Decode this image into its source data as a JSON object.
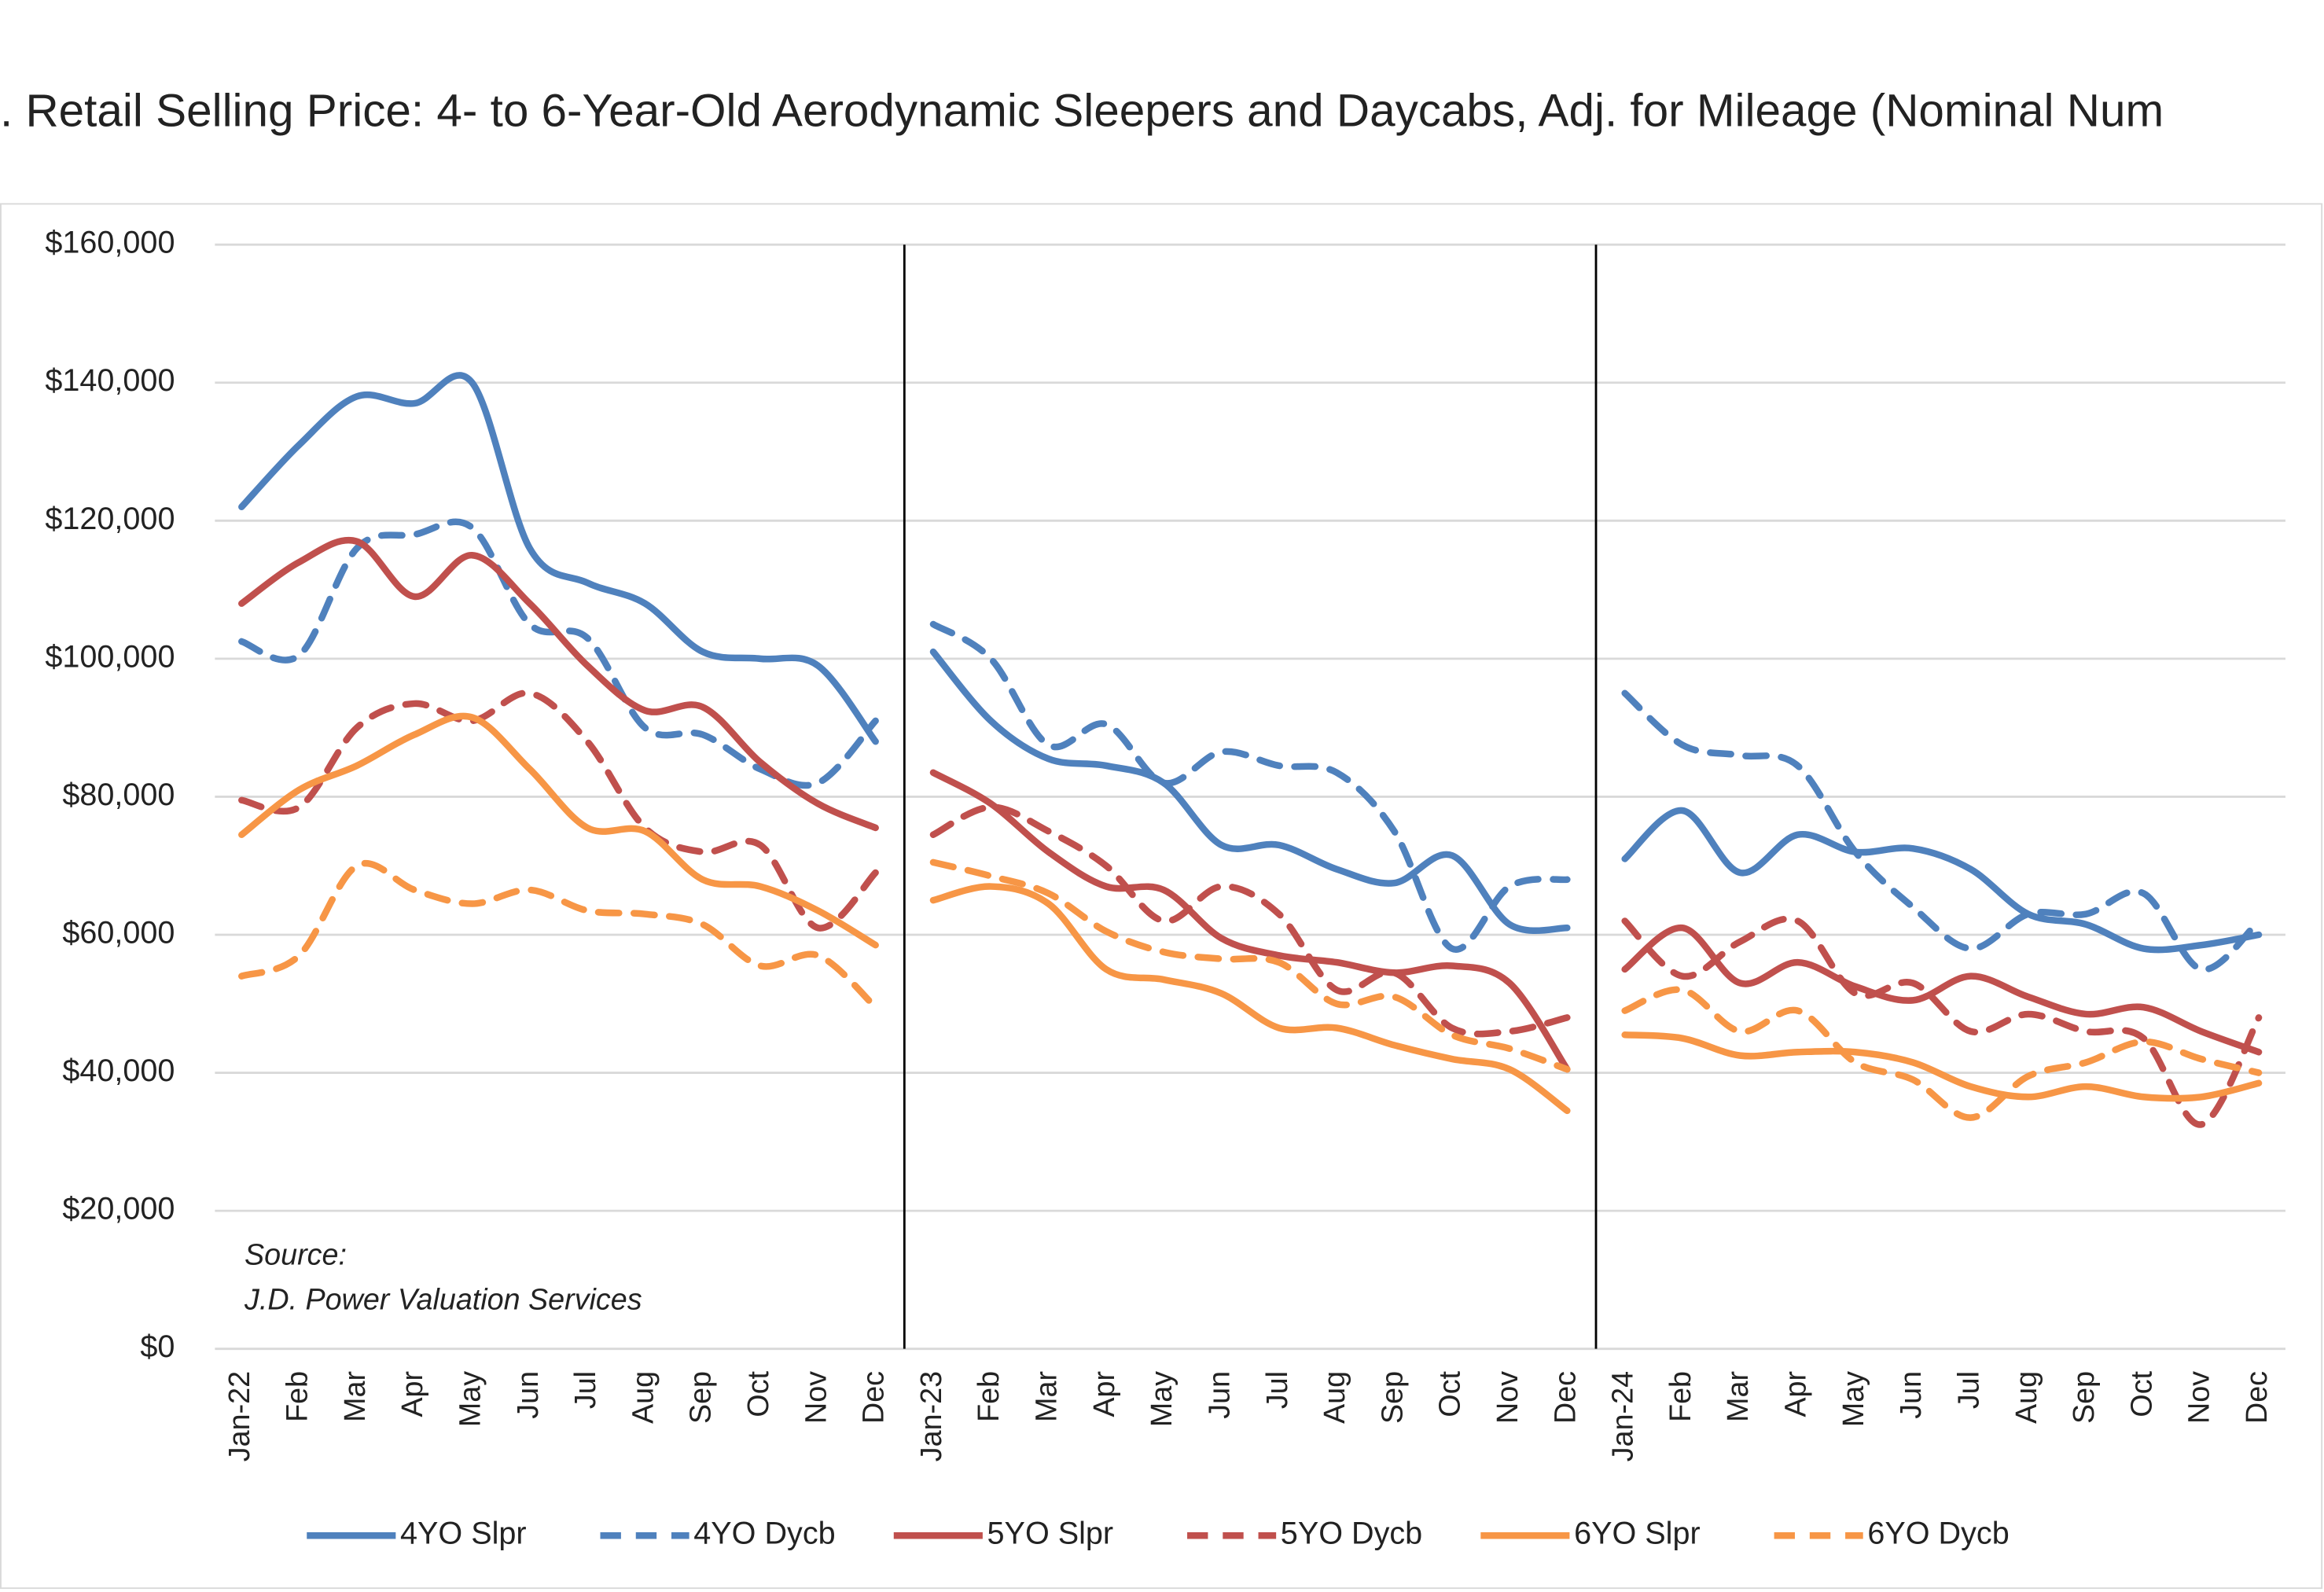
{
  "chart_data": {
    "type": "line",
    "title": ". Retail Selling Price: 4- to 6-Year-Old Aerodynamic Sleepers and Daycabs, Adj. for Mileage (Nominal Num",
    "annotation": [
      "Source:",
      "J.D. Power Valuation Services"
    ],
    "categories": [
      "Jan-22",
      "Feb",
      "Mar",
      "Apr",
      "May",
      "Jun",
      "Jul",
      "Aug",
      "Sep",
      "Oct",
      "Nov",
      "Dec",
      "Jan-23",
      "Feb",
      "Mar",
      "Apr",
      "May",
      "Jun",
      "Jul",
      "Aug",
      "Sep",
      "Oct",
      "Nov",
      "Dec",
      "Jan-24",
      "Feb",
      "Mar",
      "Apr",
      "May",
      "Jun",
      "Jul",
      "Aug",
      "Sep",
      "Oct",
      "Nov",
      "Dec"
    ],
    "ylim": [
      0,
      160000
    ],
    "yticks": [
      {
        "value": 0,
        "label": "$0"
      },
      {
        "value": 20000,
        "label": "$20,000"
      },
      {
        "value": 40000,
        "label": "$40,000"
      },
      {
        "value": 60000,
        "label": "$60,000"
      },
      {
        "value": 80000,
        "label": "$80,000"
      },
      {
        "value": 100000,
        "label": "$100,000"
      },
      {
        "value": 120000,
        "label": "$120,000"
      },
      {
        "value": 140000,
        "label": "$140,000"
      },
      {
        "value": 160000,
        "label": "$160,000"
      }
    ],
    "grid": true,
    "legend": "bottom",
    "series": [
      {
        "name": "4YO Slpr",
        "color": "#4f81bd",
        "dashed": false,
        "values": [
          122000,
          131000,
          138000,
          137000,
          140000,
          116000,
          111000,
          108000,
          101000,
          100000,
          99000,
          88000,
          101000,
          91000,
          85500,
          84500,
          82000,
          73000,
          73000,
          69500,
          67500,
          71500,
          61500,
          61000,
          71000,
          78000,
          69000,
          74500,
          72000,
          72500,
          69500,
          63000,
          61500,
          58000,
          58500,
          60000
        ]
      },
      {
        "name": "4YO Dycb",
        "color": "#4f81bd",
        "dashed": true,
        "values": [
          102500,
          100500,
          116000,
          118000,
          119000,
          105000,
          103000,
          90000,
          89000,
          84000,
          82000,
          91000,
          105000,
          100000,
          87500,
          90500,
          82000,
          86500,
          84500,
          83500,
          75000,
          58000,
          67000,
          68000,
          95000,
          87500,
          86000,
          84500,
          72000,
          64000,
          58000,
          63000,
          63000,
          66000,
          55000,
          62000
        ]
      },
      {
        "name": "5YO Slpr",
        "color": "#c0504d",
        "dashed": false,
        "values": [
          108000,
          114000,
          117000,
          109000,
          115000,
          108000,
          99000,
          92500,
          93000,
          85000,
          79000,
          75500,
          83500,
          79000,
          72000,
          67000,
          66500,
          59500,
          57000,
          56000,
          54500,
          55500,
          53000,
          40500,
          55000,
          61000,
          53000,
          56000,
          52500,
          50500,
          54000,
          51000,
          48500,
          49500,
          46000,
          43000
        ]
      },
      {
        "name": "5YO Dycb",
        "color": "#c0504d",
        "dashed": true,
        "values": [
          79500,
          78500,
          90000,
          93500,
          91000,
          95000,
          88000,
          75500,
          72000,
          73000,
          61000,
          69000,
          74500,
          78500,
          75000,
          70000,
          62000,
          67000,
          63000,
          52000,
          54500,
          46500,
          46000,
          48000,
          62000,
          54000,
          59000,
          62000,
          51500,
          53000,
          46000,
          48500,
          46000,
          45000,
          32500,
          48000
        ]
      },
      {
        "name": "6YO Slpr",
        "color": "#f79646",
        "dashed": false,
        "values": [
          74500,
          81000,
          84500,
          89000,
          91500,
          84000,
          75500,
          75000,
          68000,
          67000,
          63500,
          58500,
          65000,
          67000,
          64500,
          55000,
          53500,
          51500,
          46500,
          46500,
          44000,
          42000,
          40500,
          34500,
          45500,
          45000,
          42500,
          43000,
          43000,
          41500,
          38000,
          36500,
          38000,
          36500,
          36500,
          38500
        ]
      },
      {
        "name": "6YO Dycb",
        "color": "#f79646",
        "dashed": true,
        "values": [
          54000,
          57000,
          70000,
          66500,
          64500,
          66500,
          63500,
          63000,
          61500,
          55500,
          57000,
          49500,
          70500,
          68500,
          66000,
          60500,
          57500,
          56500,
          56000,
          50000,
          51000,
          45500,
          43500,
          40500,
          49000,
          52000,
          46000,
          49000,
          41500,
          39000,
          33500,
          39500,
          41500,
          44500,
          42000,
          40000
        ]
      }
    ]
  }
}
